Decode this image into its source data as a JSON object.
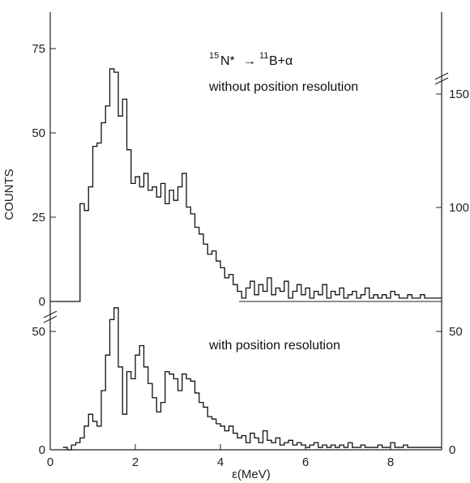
{
  "chart_data": {
    "type": "line",
    "xlabel": "ε(MeV)",
    "ylabel": "COUNTS",
    "x_ticks": [
      "0",
      "2",
      "4",
      "6",
      "8"
    ],
    "xlim": [
      0,
      9.2
    ],
    "reaction": {
      "a_mass": "15",
      "a_symbol": "N*",
      "arrow": "→",
      "b_mass": "11",
      "b_symbol": "B+α"
    },
    "top_panel": {
      "label": "without position resolution",
      "left_ticks": [
        "0",
        "25",
        "50",
        "75"
      ],
      "right_ticks": [
        "100",
        "150"
      ],
      "ylim": [
        0,
        85
      ],
      "x": [
        0.0,
        0.7,
        0.8,
        0.9,
        1.0,
        1.1,
        1.2,
        1.3,
        1.4,
        1.5,
        1.6,
        1.7,
        1.8,
        1.9,
        2.0,
        2.1,
        2.2,
        2.3,
        2.4,
        2.5,
        2.6,
        2.7,
        2.8,
        2.9,
        3.0,
        3.1,
        3.2,
        3.3,
        3.4,
        3.5,
        3.6,
        3.7,
        3.8,
        3.9,
        4.0,
        4.1,
        4.2,
        4.3,
        4.4,
        4.5,
        4.6,
        4.7,
        4.8,
        4.9,
        5.0,
        5.1,
        5.2,
        5.3,
        5.4,
        5.5,
        5.6,
        5.7,
        5.8,
        5.9,
        6.0,
        6.1,
        6.2,
        6.3,
        6.4,
        6.5,
        6.6,
        6.7,
        6.8,
        6.9,
        7.0,
        7.1,
        7.2,
        7.3,
        7.4,
        7.5,
        7.6,
        7.7,
        7.8,
        7.9,
        8.0,
        8.1,
        8.2,
        8.3,
        8.4,
        8.5,
        8.6,
        8.7,
        8.8,
        8.9,
        9.0,
        9.1,
        9.2
      ],
      "counts": [
        0,
        29,
        27,
        34,
        46,
        47,
        53,
        58,
        69,
        68,
        55,
        60,
        45,
        35,
        37,
        34,
        38,
        33,
        34,
        31,
        35,
        29,
        33,
        30,
        34,
        38,
        28,
        26,
        22,
        20,
        17,
        14,
        15,
        12,
        10,
        7,
        8,
        5,
        3,
        1,
        4,
        6,
        2,
        5,
        3,
        7,
        2,
        4,
        3,
        6,
        1,
        3,
        5,
        2,
        4,
        1,
        3,
        2,
        5,
        1,
        3,
        2,
        4,
        1,
        2,
        3,
        1,
        2,
        4,
        1,
        2,
        1,
        2,
        1,
        3,
        2,
        1,
        1,
        2,
        1,
        1,
        2,
        1,
        1,
        1,
        1,
        1
      ]
    },
    "bottom_panel": {
      "label": "with position resolution",
      "left_ticks": [
        "0",
        "50"
      ],
      "right_ticks": [
        "0",
        "50"
      ],
      "ylim": [
        0,
        60
      ],
      "x": [
        0.3,
        0.4,
        0.5,
        0.6,
        0.7,
        0.8,
        0.9,
        1.0,
        1.1,
        1.2,
        1.3,
        1.4,
        1.5,
        1.6,
        1.7,
        1.8,
        1.9,
        2.0,
        2.1,
        2.2,
        2.3,
        2.4,
        2.5,
        2.6,
        2.7,
        2.8,
        2.9,
        3.0,
        3.1,
        3.2,
        3.3,
        3.4,
        3.5,
        3.6,
        3.7,
        3.8,
        3.9,
        4.0,
        4.1,
        4.2,
        4.3,
        4.4,
        4.5,
        4.6,
        4.7,
        4.8,
        4.9,
        5.0,
        5.1,
        5.2,
        5.3,
        5.4,
        5.5,
        5.6,
        5.7,
        5.8,
        5.9,
        6.0,
        6.1,
        6.2,
        6.3,
        6.4,
        6.5,
        6.6,
        6.7,
        6.8,
        6.9,
        7.0,
        7.1,
        7.2,
        7.3,
        7.4,
        7.5,
        7.6,
        7.7,
        7.8,
        7.9,
        8.0,
        8.1,
        8.2,
        8.3,
        8.4,
        8.5,
        8.6,
        8.7,
        8.8,
        8.9,
        9.0,
        9.1
      ],
      "counts": [
        1,
        0,
        2,
        3,
        5,
        10,
        15,
        12,
        10,
        25,
        40,
        55,
        60,
        35,
        15,
        33,
        30,
        40,
        44,
        35,
        28,
        22,
        16,
        20,
        33,
        32,
        30,
        25,
        32,
        30,
        29,
        24,
        20,
        18,
        14,
        13,
        11,
        10,
        8,
        10,
        7,
        5,
        6,
        3,
        7,
        5,
        3,
        8,
        4,
        3,
        5,
        2,
        3,
        4,
        2,
        3,
        2,
        1,
        2,
        3,
        1,
        2,
        1,
        2,
        1,
        2,
        1,
        3,
        1,
        1,
        2,
        1,
        1,
        1,
        2,
        1,
        1,
        3,
        1,
        1,
        2,
        1,
        1,
        1,
        1,
        1,
        1,
        1,
        1
      ]
    }
  }
}
